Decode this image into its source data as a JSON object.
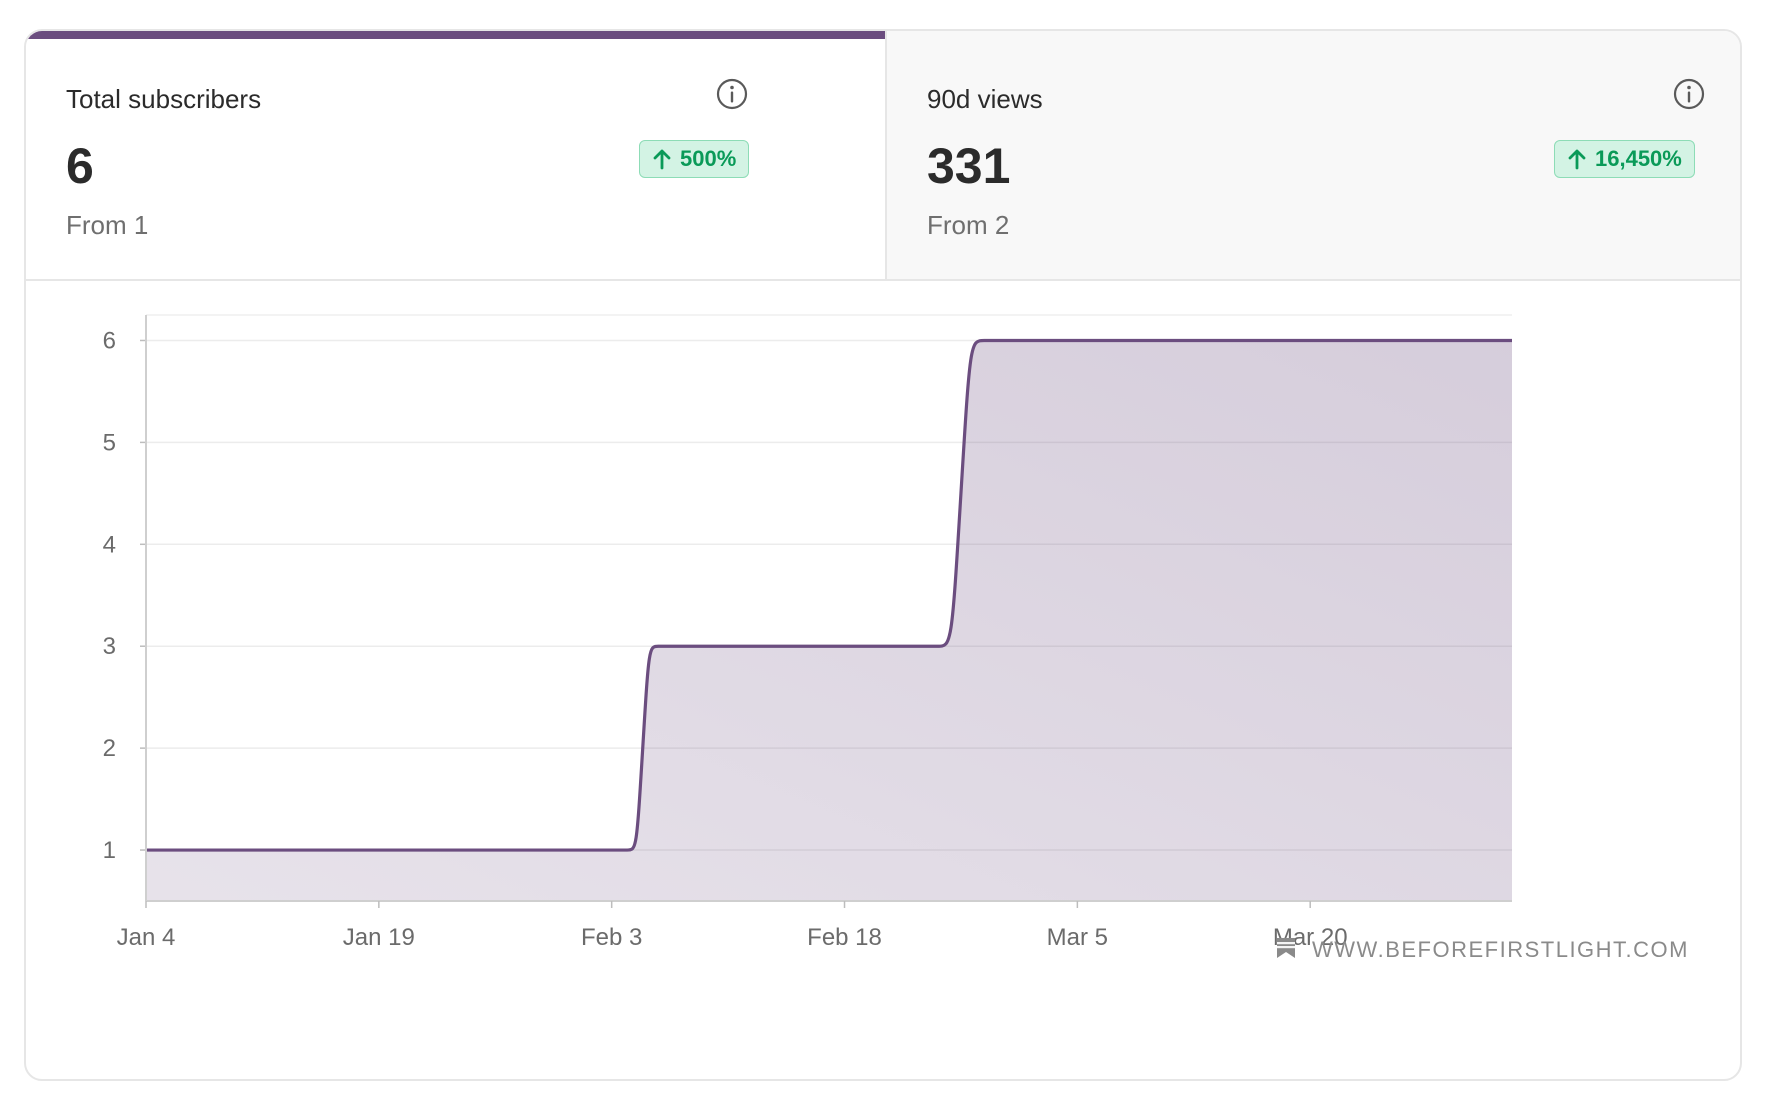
{
  "tabs": [
    {
      "title": "Total subscribers",
      "value": "6",
      "change": "500%",
      "from": "From 1"
    },
    {
      "title": "90d views",
      "value": "331",
      "change": "16,450%",
      "from": "From 2"
    }
  ],
  "watermark": "WWW.BEFOREFIRSTLIGHT.COM",
  "colors": {
    "accent": "#6b4d7f",
    "fill": "#6b4d7f",
    "positive": "#0a9a58",
    "positive_bg": "#d3f3e4"
  },
  "chart_data": {
    "type": "area",
    "title": "",
    "xlabel": "",
    "ylabel": "",
    "x_ticks": [
      "Jan 4",
      "Jan 19",
      "Feb 3",
      "Feb 18",
      "Mar 5",
      "Mar 20"
    ],
    "y_ticks": [
      1,
      2,
      3,
      4,
      5,
      6
    ],
    "xlim": [
      "Jan 4",
      "Apr 2"
    ],
    "ylim": [
      0.5,
      6.25
    ],
    "grid": true,
    "series": [
      {
        "values": [
          {
            "x": "Jan 4",
            "y": 1
          },
          {
            "x": "Feb 4",
            "y": 1
          },
          {
            "x": "Feb 6",
            "y": 3
          },
          {
            "x": "Feb 24",
            "y": 3
          },
          {
            "x": "Feb 27",
            "y": 6
          },
          {
            "x": "Apr 2",
            "y": 6
          }
        ]
      }
    ]
  }
}
